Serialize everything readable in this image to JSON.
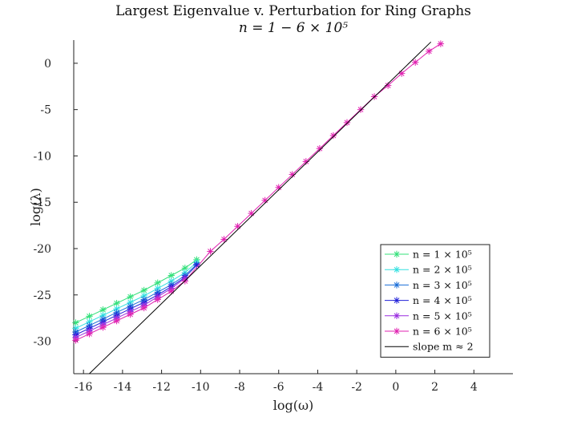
{
  "chart_data": {
    "type": "line",
    "title": "Largest Eigenvalue v. Perturbation for Ring Graphs",
    "subtitle": "n = 1 − 6 × 10⁵",
    "xlabel": "log(ω)",
    "ylabel": "log(λ)",
    "xlim": [
      -16.5,
      6
    ],
    "ylim": [
      -33.5,
      2.5
    ],
    "xticks": [
      "-16",
      "-14",
      "-12",
      "-10",
      "-8",
      "-6",
      "-4",
      "-2",
      "0",
      "2",
      "4"
    ],
    "yticks": [
      "0",
      "-5",
      "-10",
      "-15",
      "-20",
      "-25",
      "-30"
    ],
    "xtick_values": [
      -16,
      -14,
      -12,
      -10,
      -8,
      -6,
      -4,
      -2,
      0,
      2,
      4
    ],
    "ytick_values": [
      0,
      -5,
      -10,
      -15,
      -20,
      -25,
      -30
    ],
    "grid": false,
    "legend_position": "bottom-right",
    "series": [
      {
        "name": "n = 1 × 10⁵",
        "color": "#33e07a",
        "x": [
          -16.4,
          -15.7,
          -15.0,
          -14.3,
          -13.6,
          -12.9,
          -12.2,
          -11.5,
          -10.8,
          -10.2
        ],
        "y": [
          -28.0,
          -27.3,
          -26.6,
          -25.9,
          -25.2,
          -24.5,
          -23.7,
          -22.9,
          -22.1,
          -21.2
        ]
      },
      {
        "name": "n = 2 × 10⁵",
        "color": "#33e0e0",
        "x": [
          -16.4,
          -15.7,
          -15.0,
          -14.3,
          -13.6,
          -12.9,
          -12.2,
          -11.5,
          -10.8,
          -10.2
        ],
        "y": [
          -28.6,
          -27.9,
          -27.2,
          -26.5,
          -25.8,
          -25.1,
          -24.3,
          -23.5,
          -22.6,
          -21.5
        ]
      },
      {
        "name": "n = 3 × 10⁵",
        "color": "#1a6ed8",
        "x": [
          -16.4,
          -15.7,
          -15.0,
          -14.3,
          -13.6,
          -12.9,
          -12.2,
          -11.5,
          -10.8,
          -10.2
        ],
        "y": [
          -29.0,
          -28.3,
          -27.6,
          -26.9,
          -26.2,
          -25.5,
          -24.7,
          -23.9,
          -22.9,
          -21.7
        ]
      },
      {
        "name": "n = 4 × 10⁵",
        "color": "#2020d8",
        "x": [
          -16.4,
          -15.7,
          -15.0,
          -14.3,
          -13.6,
          -12.9,
          -12.2,
          -11.5,
          -10.8,
          -10.2
        ],
        "y": [
          -29.3,
          -28.6,
          -27.9,
          -27.2,
          -26.5,
          -25.8,
          -25.0,
          -24.1,
          -23.1,
          -21.8
        ]
      },
      {
        "name": "n = 5 × 10⁵",
        "color": "#9a2de0",
        "x": [
          -16.4,
          -15.7,
          -15.0,
          -14.3,
          -13.6,
          -12.9,
          -12.2,
          -11.5,
          -10.8
        ],
        "y": [
          -29.6,
          -28.9,
          -28.2,
          -27.5,
          -26.8,
          -26.1,
          -25.2,
          -24.3,
          -23.2
        ]
      },
      {
        "name": "n = 6 × 10⁵",
        "color": "#e020b0",
        "x": [
          -16.4,
          -15.7,
          -15.0,
          -14.3,
          -13.6,
          -12.9,
          -12.2,
          -11.5,
          -10.8,
          -9.5,
          -8.8,
          -8.1,
          -7.4,
          -6.7,
          -6.0,
          -5.3,
          -4.6,
          -3.9,
          -3.2,
          -2.5,
          -1.8,
          -1.1,
          -0.4,
          0.3,
          1.0,
          1.7,
          2.3
        ],
        "y": [
          -29.9,
          -29.2,
          -28.5,
          -27.8,
          -27.1,
          -26.4,
          -25.5,
          -24.6,
          -23.5,
          -20.3,
          -19.0,
          -17.6,
          -16.2,
          -14.8,
          -13.4,
          -12.0,
          -10.6,
          -9.2,
          -7.8,
          -6.4,
          -5.0,
          -3.6,
          -2.4,
          -1.1,
          0.1,
          1.3,
          2.1
        ]
      },
      {
        "name": "slope m ≈ 2",
        "color": "#000000",
        "marker": "none",
        "x": [
          -15.7,
          1.8
        ],
        "y": [
          -33.5,
          2.3
        ]
      }
    ]
  }
}
